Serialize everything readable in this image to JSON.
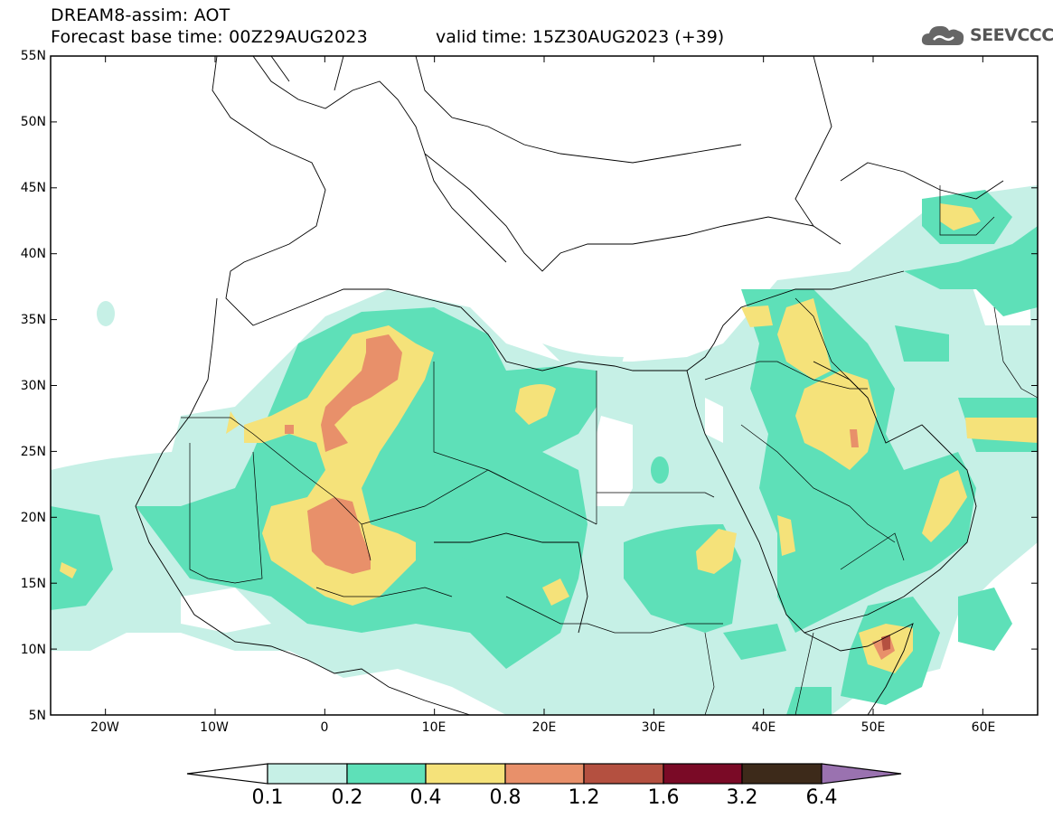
{
  "header": {
    "line1": "DREAM8-assim: AOT",
    "line2": "Forecast base time: 00Z29AUG2023",
    "valid": "valid time: 15Z30AUG2023 (+39)"
  },
  "logo": {
    "text": "SEEVCCC",
    "icon": "cloud-icon"
  },
  "axes": {
    "lat_labels": [
      "55N",
      "50N",
      "45N",
      "40N",
      "35N",
      "30N",
      "25N",
      "20N",
      "15N",
      "10N",
      "5N"
    ],
    "lat_values": [
      55,
      50,
      45,
      40,
      35,
      30,
      25,
      20,
      15,
      10,
      5
    ],
    "lon_labels": [
      "20W",
      "10W",
      "0",
      "10E",
      "20E",
      "30E",
      "40E",
      "50E",
      "60E"
    ],
    "lon_values": [
      -20,
      -10,
      0,
      10,
      20,
      30,
      40,
      50,
      60
    ],
    "lon_range": [
      -25,
      65
    ],
    "lat_range": [
      5,
      55
    ]
  },
  "colorbar": {
    "labels": [
      "0.1",
      "0.2",
      "0.4",
      "0.8",
      "1.2",
      "1.6",
      "3.2",
      "6.4"
    ],
    "colors": [
      "#ffffff",
      "#c6f0e6",
      "#5ee0b8",
      "#f5e27a",
      "#e8906a",
      "#b45040",
      "#7a0a26",
      "#3d2a1a",
      "#9a72b0"
    ]
  }
}
